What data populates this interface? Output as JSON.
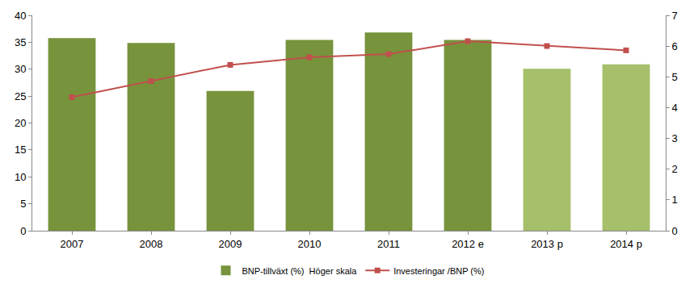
{
  "chart_data": {
    "type": "bar",
    "categories": [
      "2007",
      "2008",
      "2009",
      "2010",
      "2011",
      "2012 e",
      "2013 p",
      "2014 p"
    ],
    "series": [
      {
        "name": "BNP-tillväxt (%)  Höger skala",
        "type": "bar",
        "axis": "y2",
        "color": "#77933c",
        "colors": [
          "#77933c",
          "#77933c",
          "#77933c",
          "#77933c",
          "#77933c",
          "#77933c",
          "#a6bf6a",
          "#a6bf6a"
        ],
        "values": [
          6.26,
          6.1,
          4.54,
          6.2,
          6.44,
          6.2,
          5.26,
          5.41
        ]
      },
      {
        "name": "Investeringar /BNP (%)",
        "type": "line",
        "color": "#c0504d",
        "marker": "square",
        "values": [
          24.8,
          27.8,
          30.8,
          32.2,
          32.8,
          35.2,
          34.3,
          33.5
        ]
      }
    ],
    "ylim": [
      0,
      40
    ],
    "yticks": [
      0,
      5,
      10,
      15,
      20,
      25,
      30,
      35,
      40
    ],
    "y2lim": [
      0,
      7
    ],
    "y2ticks": [
      0,
      1,
      2,
      3,
      4,
      5,
      6,
      7
    ],
    "grid": false,
    "legend": "bottom"
  }
}
